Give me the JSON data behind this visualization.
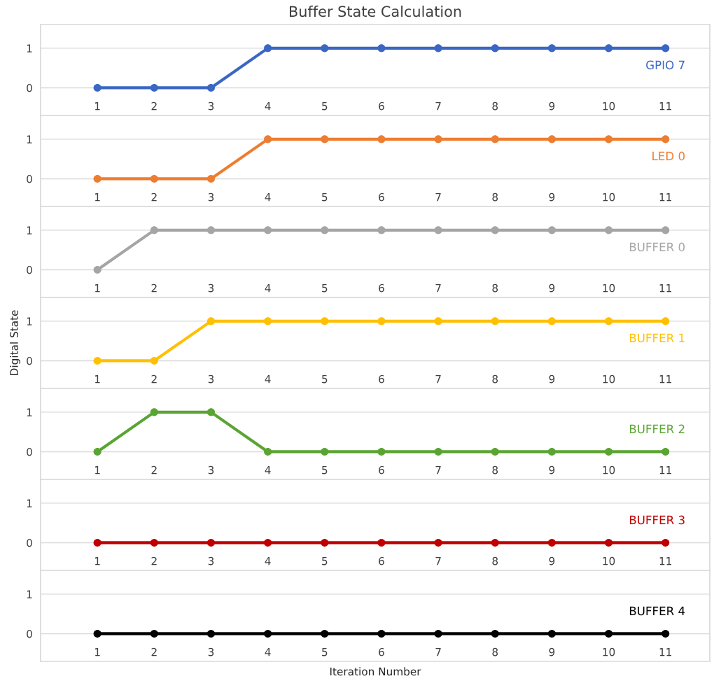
{
  "chart_data": [
    {
      "type": "line",
      "title": "Buffer State Calculation",
      "categories": [
        "1",
        "2",
        "3",
        "4",
        "5",
        "6",
        "7",
        "8",
        "9",
        "10",
        "11"
      ],
      "ylim": [
        -0.7,
        1.6
      ],
      "yticks": [
        0,
        1
      ],
      "grid": "y",
      "marker": "circle",
      "line_style": "solid",
      "series": [
        {
          "name": "GPIO 7",
          "color": "#3a66c4",
          "values": [
            0,
            0,
            0,
            1,
            1,
            1,
            1,
            1,
            1,
            1,
            1
          ]
        }
      ]
    },
    {
      "type": "line",
      "categories": [
        "1",
        "2",
        "3",
        "4",
        "5",
        "6",
        "7",
        "8",
        "9",
        "10",
        "11"
      ],
      "ylim": [
        -0.7,
        1.6
      ],
      "yticks": [
        0,
        1
      ],
      "grid": "y",
      "marker": "circle",
      "line_style": "solid",
      "series": [
        {
          "name": "LED 0",
          "color": "#ed7d31",
          "values": [
            0,
            0,
            0,
            1,
            1,
            1,
            1,
            1,
            1,
            1,
            1
          ]
        }
      ]
    },
    {
      "type": "line",
      "categories": [
        "1",
        "2",
        "3",
        "4",
        "5",
        "6",
        "7",
        "8",
        "9",
        "10",
        "11"
      ],
      "ylim": [
        -0.7,
        1.6
      ],
      "yticks": [
        0,
        1
      ],
      "grid": "y",
      "marker": "circle",
      "line_style": "solid",
      "series": [
        {
          "name": "BUFFER 0",
          "color": "#a5a5a5",
          "values": [
            0,
            1,
            1,
            1,
            1,
            1,
            1,
            1,
            1,
            1,
            1
          ]
        }
      ]
    },
    {
      "type": "line",
      "ylabel": "Digital State",
      "categories": [
        "1",
        "2",
        "3",
        "4",
        "5",
        "6",
        "7",
        "8",
        "9",
        "10",
        "11"
      ],
      "ylim": [
        -0.7,
        1.6
      ],
      "yticks": [
        0,
        1
      ],
      "grid": "y",
      "marker": "circle",
      "line_style": "solid",
      "series": [
        {
          "name": "BUFFER 1",
          "color": "#ffc000",
          "values": [
            0,
            0,
            1,
            1,
            1,
            1,
            1,
            1,
            1,
            1,
            1
          ]
        }
      ]
    },
    {
      "type": "line",
      "categories": [
        "1",
        "2",
        "3",
        "4",
        "5",
        "6",
        "7",
        "8",
        "9",
        "10",
        "11"
      ],
      "ylim": [
        -0.7,
        1.6
      ],
      "yticks": [
        0,
        1
      ],
      "grid": "y",
      "marker": "circle",
      "line_style": "solid",
      "series": [
        {
          "name": "BUFFER 2",
          "color": "#5aa532",
          "values": [
            0,
            1,
            1,
            0,
            0,
            0,
            0,
            0,
            0,
            0,
            0
          ]
        }
      ]
    },
    {
      "type": "line",
      "categories": [
        "1",
        "2",
        "3",
        "4",
        "5",
        "6",
        "7",
        "8",
        "9",
        "10",
        "11"
      ],
      "ylim": [
        -0.7,
        1.6
      ],
      "yticks": [
        0,
        1
      ],
      "grid": "y",
      "marker": "circle",
      "line_style": "solid",
      "series": [
        {
          "name": "BUFFER 3",
          "color": "#c00000",
          "values": [
            0,
            0,
            0,
            0,
            0,
            0,
            0,
            0,
            0,
            0,
            0
          ]
        }
      ]
    },
    {
      "type": "line",
      "xlabel": "Iteration Number",
      "categories": [
        "1",
        "2",
        "3",
        "4",
        "5",
        "6",
        "7",
        "8",
        "9",
        "10",
        "11"
      ],
      "ylim": [
        -0.7,
        1.6
      ],
      "yticks": [
        0,
        1
      ],
      "grid": "y",
      "marker": "circle",
      "line_style": "solid",
      "series": [
        {
          "name": "BUFFER 4",
          "color": "#000000",
          "values": [
            0,
            0,
            0,
            0,
            0,
            0,
            0,
            0,
            0,
            0,
            0
          ]
        }
      ]
    }
  ]
}
